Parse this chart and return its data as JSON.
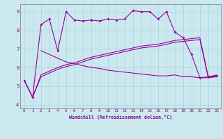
{
  "xlabel": "Windchill (Refroidissement éolien,°C)",
  "background_color": "#cce8ef",
  "line_color": "#990099",
  "xlim": [
    -0.5,
    23.5
  ],
  "ylim": [
    3.8,
    9.4
  ],
  "xtick_labels": [
    "0",
    "1",
    "2",
    "3",
    "4",
    "5",
    "6",
    "7",
    "8",
    "9",
    "10",
    "11",
    "12",
    "13",
    "14",
    "15",
    "16",
    "17",
    "18",
    "19",
    "20",
    "21",
    "22",
    "23"
  ],
  "ytick_values": [
    4,
    5,
    6,
    7,
    8,
    9
  ],
  "line1_x": [
    0,
    1,
    2,
    3,
    4,
    5,
    6,
    7,
    8,
    9,
    10,
    11,
    12,
    13,
    14,
    15,
    16,
    17,
    18,
    19,
    20,
    21,
    22,
    23
  ],
  "line1_y": [
    5.3,
    4.4,
    8.3,
    8.6,
    6.9,
    9.0,
    8.55,
    8.5,
    8.55,
    8.5,
    8.6,
    8.55,
    8.6,
    9.05,
    9.0,
    9.0,
    8.6,
    9.0,
    7.9,
    7.6,
    6.7,
    5.45,
    5.5,
    5.55
  ],
  "line2_x": [
    0,
    1,
    2,
    3,
    4,
    5,
    6,
    7,
    8,
    9,
    10,
    11,
    12,
    13,
    14,
    15,
    16,
    17,
    18,
    19,
    20,
    21,
    22,
    23
  ],
  "line2_y": [
    5.3,
    4.4,
    5.5,
    5.7,
    5.9,
    6.05,
    6.15,
    6.3,
    6.45,
    6.55,
    6.65,
    6.75,
    6.85,
    6.95,
    7.05,
    7.1,
    7.15,
    7.25,
    7.35,
    7.4,
    7.45,
    7.5,
    5.45,
    5.55
  ],
  "line3_x": [
    0,
    1,
    2,
    3,
    4,
    5,
    6,
    7,
    8,
    9,
    10,
    11,
    12,
    13,
    14,
    15,
    16,
    17,
    18,
    19,
    20,
    21,
    22,
    23
  ],
  "line3_y": [
    5.3,
    4.4,
    5.6,
    5.8,
    6.0,
    6.15,
    6.25,
    6.4,
    6.55,
    6.65,
    6.75,
    6.85,
    6.95,
    7.05,
    7.15,
    7.2,
    7.25,
    7.35,
    7.45,
    7.5,
    7.55,
    7.6,
    5.5,
    5.6
  ],
  "line4_x": [
    2,
    3,
    4,
    5,
    6,
    7,
    8,
    9,
    10,
    11,
    12,
    13,
    14,
    15,
    16,
    17,
    18,
    19,
    20,
    21,
    22,
    23
  ],
  "line4_y": [
    6.9,
    6.7,
    6.5,
    6.3,
    6.2,
    6.1,
    6.0,
    5.95,
    5.85,
    5.8,
    5.75,
    5.7,
    5.65,
    5.6,
    5.55,
    5.55,
    5.6,
    5.5,
    5.5,
    5.45,
    5.45,
    5.5
  ]
}
